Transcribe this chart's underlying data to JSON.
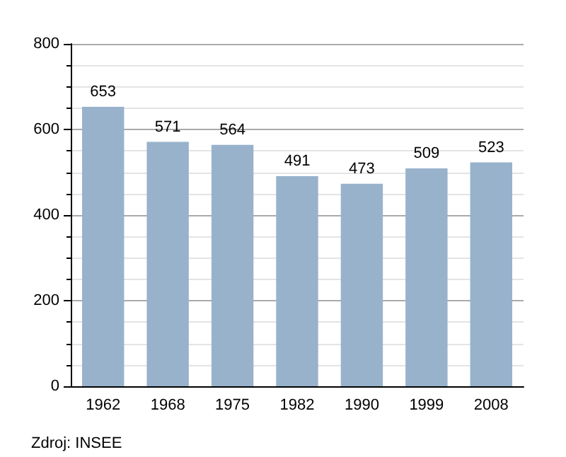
{
  "chart_data": {
    "type": "bar",
    "categories": [
      "1962",
      "1968",
      "1975",
      "1982",
      "1990",
      "1999",
      "2008"
    ],
    "values": [
      653,
      571,
      564,
      491,
      473,
      509,
      523
    ],
    "color": "#98b2cc",
    "ylim": [
      0,
      800
    ],
    "yticks": [
      0,
      200,
      400,
      600,
      800
    ],
    "grid": true,
    "data_labels": true,
    "annotations": [
      "Zdroj: INSEE"
    ]
  }
}
